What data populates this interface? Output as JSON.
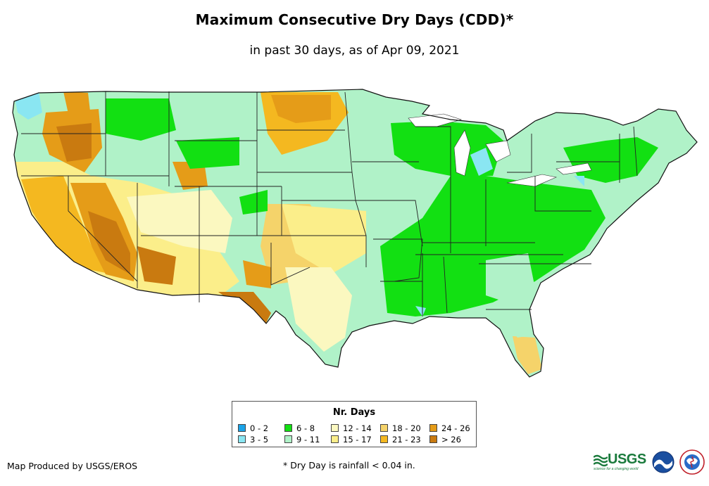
{
  "header": {
    "title": "Maximum Consecutive Dry Days (CDD)*",
    "subtitle": "in past 30 days, as of Apr 09, 2021"
  },
  "legend": {
    "title": "Nr. Days",
    "items": [
      {
        "label": "0 - 2",
        "color": "#1aa3e8"
      },
      {
        "label": "3 - 5",
        "color": "#8ae6f2"
      },
      {
        "label": "6 - 8",
        "color": "#12e012"
      },
      {
        "label": "9 - 11",
        "color": "#b0f2c8"
      },
      {
        "label": "12 - 14",
        "color": "#fbf8c0"
      },
      {
        "label": "15 - 17",
        "color": "#fbee8a"
      },
      {
        "label": "18 - 20",
        "color": "#f5d36a"
      },
      {
        "label": "21 - 23",
        "color": "#f4b820"
      },
      {
        "label": "24 - 26",
        "color": "#e59c18"
      },
      {
        "label": "> 26",
        "color": "#c97a10"
      }
    ]
  },
  "footer": {
    "producer": "Map Produced by USGS/EROS",
    "note": "* Dry Day is rainfall < 0.04 in."
  },
  "logos": {
    "usgs": "USGS",
    "usgs_tagline": "science for a changing world",
    "noaa": "noaa-logo",
    "nws": "nws-logo"
  }
}
